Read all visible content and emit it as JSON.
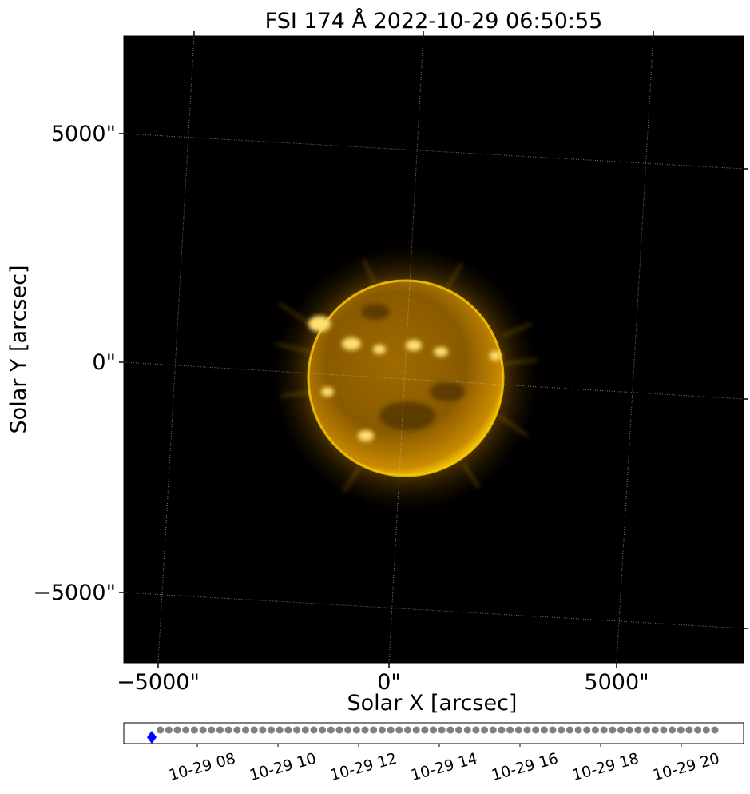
{
  "title": "FSI 174 Å 2022-10-29 06:50:55",
  "x_axis": {
    "label": "Solar X [arcsec]",
    "ticks": [
      "−5000\"",
      "0\"",
      "5000\""
    ]
  },
  "y_axis": {
    "label": "Solar Y [arcsec]",
    "ticks": [
      "5000\"",
      "0\"",
      "−5000\""
    ]
  },
  "colors": {
    "sun_bright": "#fff0a0",
    "sun_main": "#e6a200",
    "sun_dark": "#5a3a00",
    "background": "#000000",
    "timeline_dot": "#808080",
    "timeline_current": "#0000ff"
  },
  "timeline": {
    "labels": [
      "10-29 08",
      "10-29 10",
      "10-29 12",
      "10-29 14",
      "10-29 16",
      "10-29 18",
      "10-29 20"
    ],
    "frame_count": 67,
    "current_frame": 0
  }
}
